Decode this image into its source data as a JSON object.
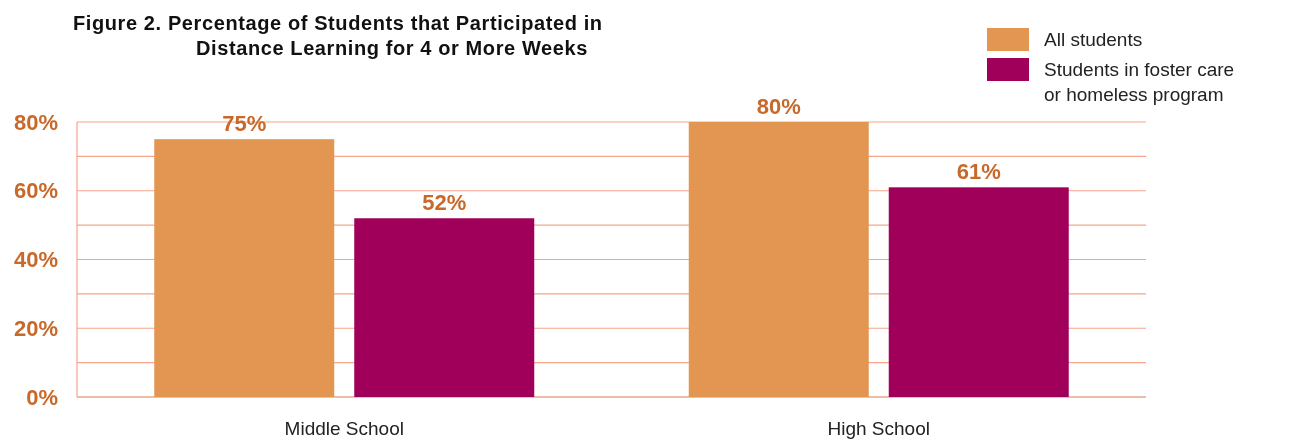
{
  "chart_data": {
    "type": "bar",
    "title": "Figure 2.  Percentage of Students that Participated in Distance Learning for 4 or More Weeks",
    "categories": [
      "Middle School",
      "High School"
    ],
    "series": [
      {
        "name": "All students",
        "color": "#e39652",
        "values": [
          75,
          80
        ],
        "value_labels": [
          "75%",
          "80%"
        ]
      },
      {
        "name": "Students in foster care or homeless program",
        "color": "#a0005a",
        "values": [
          52,
          61
        ],
        "value_labels": [
          "52%",
          "61%"
        ]
      }
    ],
    "ylim": [
      0,
      80
    ],
    "yticks": [
      {
        "value": 0,
        "label": "0%"
      },
      {
        "value": 10,
        "label": null
      },
      {
        "value": 20,
        "label": "20%"
      },
      {
        "value": 30,
        "label": null
      },
      {
        "value": 40,
        "label": "40%"
      },
      {
        "value": 50,
        "label": null
      },
      {
        "value": 60,
        "label": "60%"
      },
      {
        "value": 70,
        "label": null
      },
      {
        "value": 80,
        "label": "80%"
      }
    ],
    "grid": "y",
    "legend": "top right"
  }
}
